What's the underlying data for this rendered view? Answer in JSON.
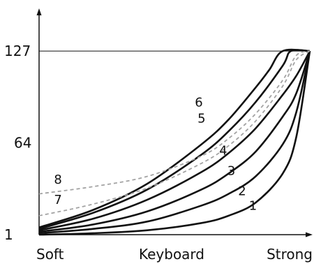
{
  "chart_data": {
    "type": "line",
    "xlabel": "",
    "ylabel": "",
    "x_categories": [
      "Soft",
      "Keyboard",
      "Strong"
    ],
    "yticks": [
      1,
      64,
      127
    ],
    "ylim": [
      1,
      127
    ],
    "grid": false,
    "reference_line": 127,
    "series": [
      {
        "name": "1",
        "style": "solid",
        "points": [
          [
            0,
            1
          ],
          [
            0.2,
            2
          ],
          [
            0.4,
            4
          ],
          [
            0.6,
            9
          ],
          [
            0.7,
            14
          ],
          [
            0.8,
            23
          ],
          [
            0.9,
            43
          ],
          [
            0.95,
            68
          ],
          [
            1.0,
            127
          ]
        ]
      },
      {
        "name": "2",
        "style": "solid",
        "points": [
          [
            0,
            2
          ],
          [
            0.2,
            5
          ],
          [
            0.4,
            10
          ],
          [
            0.6,
            21
          ],
          [
            0.7,
            29
          ],
          [
            0.8,
            41
          ],
          [
            0.9,
            63
          ],
          [
            0.95,
            85
          ],
          [
            1.0,
            127
          ]
        ]
      },
      {
        "name": "3",
        "style": "solid",
        "points": [
          [
            0,
            3
          ],
          [
            0.2,
            8
          ],
          [
            0.4,
            17
          ],
          [
            0.6,
            32
          ],
          [
            0.7,
            43
          ],
          [
            0.8,
            58
          ],
          [
            0.9,
            82
          ],
          [
            0.95,
            98
          ],
          [
            1.0,
            127
          ]
        ]
      },
      {
        "name": "4",
        "style": "solid",
        "points": [
          [
            0,
            4
          ],
          [
            0.2,
            12
          ],
          [
            0.4,
            25
          ],
          [
            0.6,
            44
          ],
          [
            0.7,
            57
          ],
          [
            0.8,
            74
          ],
          [
            0.9,
            97
          ],
          [
            0.95,
            110
          ],
          [
            1.0,
            127
          ]
        ]
      },
      {
        "name": "5",
        "style": "solid",
        "points": [
          [
            0,
            5
          ],
          [
            0.2,
            16
          ],
          [
            0.4,
            32
          ],
          [
            0.6,
            56
          ],
          [
            0.7,
            72
          ],
          [
            0.8,
            92
          ],
          [
            0.9,
            117
          ],
          [
            0.93,
            127
          ],
          [
            1.0,
            127
          ]
        ]
      },
      {
        "name": "6",
        "style": "solid",
        "points": [
          [
            0,
            6
          ],
          [
            0.2,
            18
          ],
          [
            0.4,
            36
          ],
          [
            0.6,
            63
          ],
          [
            0.7,
            80
          ],
          [
            0.8,
            102
          ],
          [
            0.85,
            114
          ],
          [
            0.9,
            127
          ],
          [
            1.0,
            127
          ]
        ]
      },
      {
        "name": "7",
        "style": "dashed",
        "points": [
          [
            0,
            14
          ],
          [
            0.2,
            22
          ],
          [
            0.4,
            33
          ],
          [
            0.6,
            50
          ],
          [
            0.7,
            62
          ],
          [
            0.8,
            79
          ],
          [
            0.9,
            103
          ],
          [
            0.95,
            121
          ],
          [
            1.0,
            127
          ]
        ]
      },
      {
        "name": "8",
        "style": "dashed",
        "points": [
          [
            0,
            29
          ],
          [
            0.2,
            34
          ],
          [
            0.4,
            41
          ],
          [
            0.6,
            55
          ],
          [
            0.7,
            67
          ],
          [
            0.8,
            84
          ],
          [
            0.9,
            107
          ],
          [
            0.95,
            124
          ],
          [
            1.0,
            127
          ]
        ]
      }
    ],
    "curve_labels": [
      {
        "text": "1",
        "x": 0.79,
        "y": 18
      },
      {
        "text": "2",
        "x": 0.75,
        "y": 28
      },
      {
        "text": "3",
        "x": 0.71,
        "y": 42
      },
      {
        "text": "4",
        "x": 0.68,
        "y": 56
      },
      {
        "text": "5",
        "x": 0.6,
        "y": 78
      },
      {
        "text": "6",
        "x": 0.59,
        "y": 89
      },
      {
        "text": "7",
        "x": 0.07,
        "y": 22
      },
      {
        "text": "8",
        "x": 0.07,
        "y": 36
      }
    ]
  }
}
